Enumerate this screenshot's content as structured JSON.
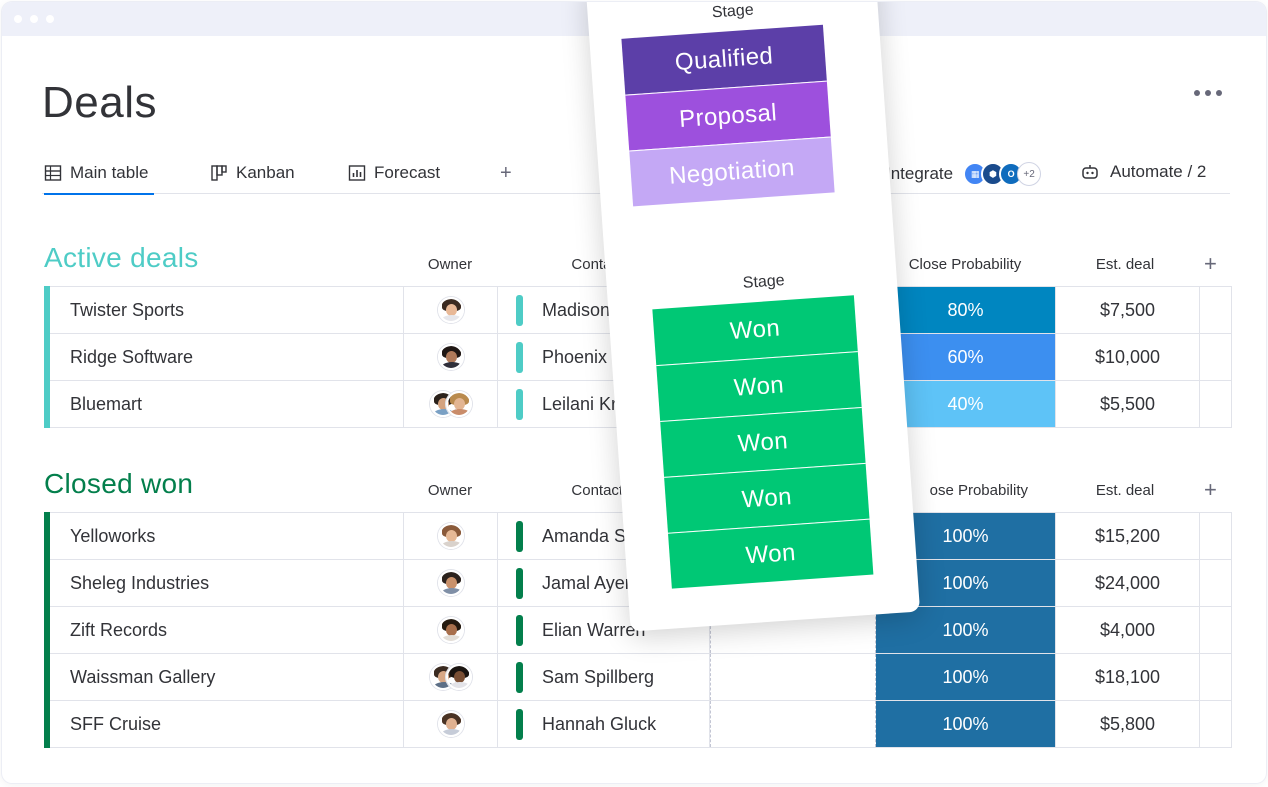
{
  "window": {
    "title_dots": 3
  },
  "page": {
    "title": "Deals"
  },
  "tabs": [
    {
      "label": "Main table",
      "icon": "table-icon",
      "active": true
    },
    {
      "label": "Kanban",
      "icon": "kanban-icon",
      "active": false
    },
    {
      "label": "Forecast",
      "icon": "chart-icon",
      "active": false
    }
  ],
  "toolbar": {
    "add_view": "+",
    "integrate_label": "Integrate",
    "integrate_more": "+2",
    "automate_label": "Automate / 2",
    "more": "more-options-icon"
  },
  "columns": {
    "owner": "Owner",
    "contacts": "Contacts",
    "close_probability": "Close Probability",
    "close_probability_partial": "ose Probability",
    "est_deal": "Est. deal",
    "add": "+"
  },
  "groups": [
    {
      "title": "Active deals",
      "color": "#4eccc6",
      "rows": [
        {
          "name": "Twister Sports",
          "contact": "Madison Doy",
          "probability": "80%",
          "prob_color": "#0086c0",
          "est": "$7,500",
          "owners": 1
        },
        {
          "name": "Ridge Software",
          "contact": "Phoenix Levy",
          "probability": "60%",
          "prob_color": "#3c8ff0",
          "est": "$10,000",
          "owners": 1
        },
        {
          "name": "Bluemart",
          "contact": "Leilani Krause",
          "probability": "40%",
          "prob_color": "#5ec3f7",
          "est": "$5,500",
          "owners": 2
        }
      ]
    },
    {
      "title": "Closed won",
      "color": "#037f4c",
      "rows": [
        {
          "name": "Yelloworks",
          "contact": "Amanda Smith",
          "probability": "100%",
          "prob_color": "#1f6fa3",
          "est": "$15,200",
          "owners": 1
        },
        {
          "name": "Sheleg Industries",
          "contact": "Jamal Ayers",
          "probability": "100%",
          "prob_color": "#1f6fa3",
          "est": "$24,000",
          "owners": 1
        },
        {
          "name": "Zift Records",
          "contact": "Elian Warren",
          "probability": "100%",
          "prob_color": "#1f6fa3",
          "est": "$4,000",
          "owners": 1
        },
        {
          "name": "Waissman Gallery",
          "contact": "Sam Spillberg",
          "probability": "100%",
          "prob_color": "#1f6fa3",
          "est": "$18,100",
          "owners": 2
        },
        {
          "name": "SFF Cruise",
          "contact": "Hannah Gluck",
          "probability": "100%",
          "prob_color": "#1f6fa3",
          "est": "$5,800",
          "owners": 1
        }
      ]
    }
  ],
  "stage_card": {
    "header_top": "Stage",
    "header_mid": "Stage",
    "active_stages": [
      {
        "label": "Qualified",
        "color": "#5c3fa8"
      },
      {
        "label": "Proposal",
        "color": "#9d50dd"
      },
      {
        "label": "Negotiation",
        "color": "#c4a8f5"
      }
    ],
    "won_stages": [
      "Won",
      "Won",
      "Won",
      "Won",
      "Won"
    ],
    "won_color": "#00c875"
  }
}
